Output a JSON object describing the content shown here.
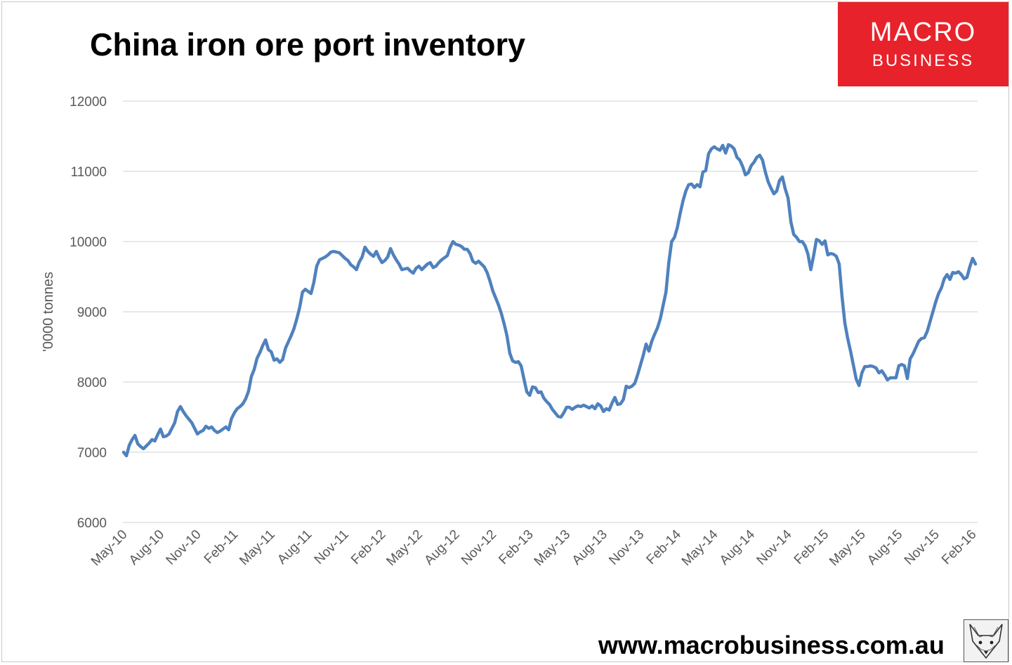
{
  "chart_data": {
    "type": "line",
    "title": "China iron ore port inventory",
    "ylabel": "'0000 tonnes",
    "xlabel": "",
    "ylim": [
      6000,
      12000
    ],
    "yticks": [
      6000,
      7000,
      8000,
      9000,
      10000,
      11000,
      12000
    ],
    "grid": true,
    "x_tick_labels": [
      "May-10",
      "Aug-10",
      "Nov-10",
      "Feb-11",
      "May-11",
      "Aug-11",
      "Nov-11",
      "Feb-12",
      "May-12",
      "Aug-12",
      "Nov-12",
      "Feb-13",
      "May-13",
      "Aug-13",
      "Nov-13",
      "Feb-14",
      "May-14",
      "Aug-14",
      "Nov-14",
      "Feb-15",
      "May-15",
      "Aug-15",
      "Nov-15",
      "Feb-16"
    ],
    "x_start": "2010-05",
    "points_per_tick": 13,
    "series": [
      {
        "color": "#4f81bd",
        "values": [
          7000,
          6950,
          7100,
          7180,
          7240,
          7120,
          7080,
          7050,
          7090,
          7130,
          7180,
          7160,
          7250,
          7330,
          7220,
          7230,
          7260,
          7340,
          7420,
          7580,
          7650,
          7580,
          7520,
          7470,
          7420,
          7340,
          7260,
          7290,
          7310,
          7370,
          7340,
          7360,
          7310,
          7280,
          7300,
          7330,
          7360,
          7320,
          7480,
          7560,
          7620,
          7650,
          7690,
          7760,
          7870,
          8080,
          8180,
          8340,
          8420,
          8520,
          8600,
          8460,
          8430,
          8310,
          8330,
          8280,
          8320,
          8480,
          8570,
          8660,
          8760,
          8900,
          9060,
          9280,
          9320,
          9290,
          9260,
          9420,
          9650,
          9740,
          9760,
          9780,
          9810,
          9850,
          9860,
          9850,
          9840,
          9800,
          9760,
          9730,
          9670,
          9640,
          9600,
          9710,
          9780,
          9920,
          9860,
          9820,
          9790,
          9860,
          9770,
          9700,
          9730,
          9780,
          9900,
          9810,
          9740,
          9680,
          9600,
          9610,
          9620,
          9580,
          9550,
          9620,
          9650,
          9600,
          9640,
          9680,
          9700,
          9630,
          9650,
          9700,
          9740,
          9770,
          9800,
          9920,
          10000,
          9960,
          9950,
          9930,
          9890,
          9890,
          9830,
          9720,
          9690,
          9720,
          9680,
          9640,
          9560,
          9440,
          9300,
          9200,
          9100,
          8980,
          8830,
          8660,
          8410,
          8300,
          8280,
          8290,
          8230,
          8040,
          7860,
          7810,
          7930,
          7920,
          7850,
          7860,
          7770,
          7720,
          7680,
          7610,
          7560,
          7510,
          7500,
          7560,
          7640,
          7640,
          7610,
          7640,
          7660,
          7650,
          7670,
          7650,
          7630,
          7660,
          7620,
          7690,
          7660,
          7580,
          7620,
          7600,
          7700,
          7780,
          7680,
          7690,
          7750,
          7940,
          7920,
          7940,
          7980,
          8100,
          8240,
          8380,
          8540,
          8440,
          8580,
          8680,
          8770,
          8900,
          9090,
          9280,
          9700,
          10000,
          10060,
          10200,
          10400,
          10580,
          10720,
          10810,
          10820,
          10770,
          10810,
          10780,
          10990,
          11010,
          11250,
          11320,
          11350,
          11320,
          11300,
          11370,
          11260,
          11380,
          11360,
          11320,
          11200,
          11160,
          11070,
          10950,
          10980,
          11080,
          11130,
          11200,
          11230,
          11160,
          10990,
          10850,
          10760,
          10680,
          10720,
          10870,
          10920,
          10750,
          10620,
          10280,
          10100,
          10060,
          10000,
          10000,
          9940,
          9820,
          9600,
          9800,
          10030,
          10010,
          9960,
          10010,
          9810,
          9830,
          9820,
          9790,
          9680,
          9220,
          8840,
          8620,
          8440,
          8240,
          8040,
          7950,
          8130,
          8220,
          8220,
          8230,
          8220,
          8200,
          8130,
          8160,
          8100,
          8030,
          8060,
          8060,
          8060,
          8230,
          8250,
          8230,
          8050,
          8330,
          8400,
          8490,
          8580,
          8620,
          8630,
          8720,
          8860,
          9000,
          9140,
          9260,
          9340,
          9470,
          9530,
          9460,
          9560,
          9550,
          9570,
          9530,
          9470,
          9490,
          9640,
          9760,
          9680
        ]
      }
    ]
  },
  "logo": {
    "line1": "MACRO",
    "line2": "BUSINESS",
    "bg_color": "#e8222b"
  },
  "footer": {
    "url": "www.macrobusiness.com.au"
  },
  "fox_icon": "fox-sketch-icon"
}
